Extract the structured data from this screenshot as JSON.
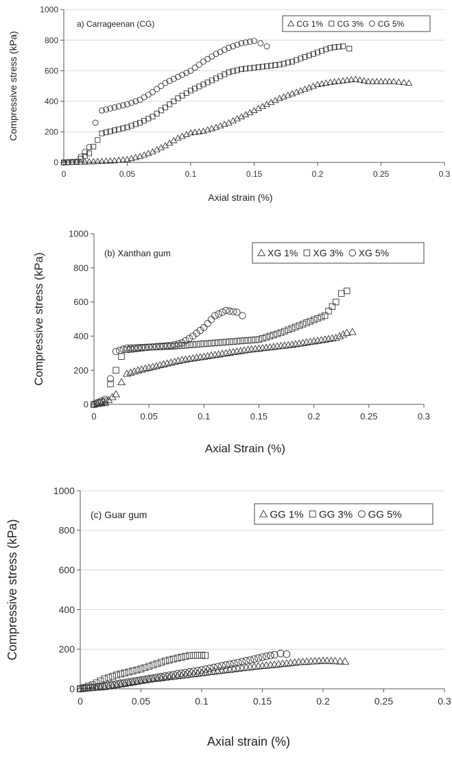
{
  "charts": [
    {
      "type": "scatter",
      "panel_label": "a) Carrageenan (CG)",
      "xlabel": "Axial strain (%)",
      "ylabel": "Compressive stress (kPa)",
      "xlim": [
        0,
        0.3
      ],
      "ylim": [
        0,
        1000
      ],
      "xticks": [
        0,
        0.05,
        0.1,
        0.15,
        0.2,
        0.25,
        0.3
      ],
      "xtick_labels": [
        "0",
        "0.05",
        "0.1",
        "0.15",
        "0.2",
        "0.25",
        "0.3"
      ],
      "yticks": [
        0,
        200,
        400,
        600,
        800,
        1000
      ],
      "ytick_labels": [
        "0",
        "200",
        "400",
        "600",
        "800",
        "1000"
      ],
      "grid": "horizontal",
      "legend": "top-right",
      "series": [
        {
          "name": "CG 1%",
          "marker": "triangle",
          "points": [
            [
              0.0,
              0
            ],
            [
              0.01,
              2
            ],
            [
              0.02,
              5
            ],
            [
              0.03,
              8
            ],
            [
              0.04,
              12
            ],
            [
              0.05,
              20
            ],
            [
              0.06,
              40
            ],
            [
              0.07,
              70
            ],
            [
              0.08,
              110
            ],
            [
              0.09,
              160
            ],
            [
              0.1,
              195
            ],
            [
              0.11,
              205
            ],
            [
              0.12,
              230
            ],
            [
              0.13,
              260
            ],
            [
              0.14,
              300
            ],
            [
              0.15,
              340
            ],
            [
              0.16,
              380
            ],
            [
              0.17,
              420
            ],
            [
              0.18,
              450
            ],
            [
              0.19,
              480
            ],
            [
              0.2,
              510
            ],
            [
              0.21,
              525
            ],
            [
              0.22,
              535
            ],
            [
              0.23,
              545
            ],
            [
              0.24,
              530
            ],
            [
              0.26,
              530
            ],
            [
              0.272,
              520
            ]
          ]
        },
        {
          "name": "CG 3%",
          "marker": "square",
          "points": [
            [
              0.0,
              0
            ],
            [
              0.01,
              5
            ],
            [
              0.02,
              60
            ],
            [
              0.03,
              190
            ],
            [
              0.04,
              210
            ],
            [
              0.05,
              230
            ],
            [
              0.06,
              260
            ],
            [
              0.07,
              300
            ],
            [
              0.08,
              360
            ],
            [
              0.09,
              420
            ],
            [
              0.1,
              470
            ],
            [
              0.11,
              510
            ],
            [
              0.12,
              550
            ],
            [
              0.13,
              590
            ],
            [
              0.14,
              610
            ],
            [
              0.15,
              620
            ],
            [
              0.16,
              630
            ],
            [
              0.17,
              640
            ],
            [
              0.18,
              660
            ],
            [
              0.19,
              690
            ],
            [
              0.2,
              720
            ],
            [
              0.21,
              750
            ],
            [
              0.22,
              760
            ],
            [
              0.225,
              745
            ]
          ]
        },
        {
          "name": "CG 5%",
          "marker": "circle",
          "points": [
            [
              0.0,
              0
            ],
            [
              0.01,
              5
            ],
            [
              0.02,
              100
            ],
            [
              0.025,
              260
            ],
            [
              0.03,
              340
            ],
            [
              0.04,
              360
            ],
            [
              0.05,
              380
            ],
            [
              0.06,
              410
            ],
            [
              0.07,
              460
            ],
            [
              0.08,
              520
            ],
            [
              0.09,
              560
            ],
            [
              0.1,
              600
            ],
            [
              0.11,
              660
            ],
            [
              0.12,
              710
            ],
            [
              0.13,
              750
            ],
            [
              0.14,
              780
            ],
            [
              0.15,
              795
            ],
            [
              0.155,
              780
            ],
            [
              0.16,
              760
            ]
          ]
        }
      ]
    },
    {
      "type": "scatter",
      "panel_label": "(b) Xanthan gum",
      "xlabel": "Axial Strain (%)",
      "ylabel": "Compressive stress (kPa)",
      "xlim": [
        0,
        0.3
      ],
      "ylim": [
        0,
        1000
      ],
      "xticks": [
        0,
        0.05,
        0.1,
        0.15,
        0.2,
        0.25,
        0.3
      ],
      "xtick_labels": [
        "0",
        "0.05",
        "0.1",
        "0.15",
        "0.2",
        "0.25",
        "0.3"
      ],
      "yticks": [
        0,
        200,
        400,
        600,
        800,
        1000
      ],
      "ytick_labels": [
        "0",
        "200",
        "400",
        "600",
        "800",
        "1000"
      ],
      "grid": "none",
      "legend": "top-right",
      "series": [
        {
          "name": "XG 1%",
          "marker": "triangle",
          "points": [
            [
              0.0,
              0
            ],
            [
              0.01,
              10
            ],
            [
              0.02,
              60
            ],
            [
              0.025,
              130
            ],
            [
              0.03,
              180
            ],
            [
              0.04,
              200
            ],
            [
              0.05,
              215
            ],
            [
              0.06,
              230
            ],
            [
              0.08,
              260
            ],
            [
              0.1,
              280
            ],
            [
              0.12,
              300
            ],
            [
              0.14,
              320
            ],
            [
              0.16,
              335
            ],
            [
              0.18,
              350
            ],
            [
              0.2,
              370
            ],
            [
              0.22,
              390
            ],
            [
              0.23,
              420
            ],
            [
              0.235,
              425
            ]
          ]
        },
        {
          "name": "XG 3%",
          "marker": "square",
          "points": [
            [
              0.0,
              0
            ],
            [
              0.01,
              20
            ],
            [
              0.015,
              120
            ],
            [
              0.02,
              200
            ],
            [
              0.025,
              280
            ],
            [
              0.03,
              320
            ],
            [
              0.05,
              335
            ],
            [
              0.07,
              340
            ],
            [
              0.09,
              350
            ],
            [
              0.11,
              360
            ],
            [
              0.13,
              370
            ],
            [
              0.15,
              380
            ],
            [
              0.17,
              420
            ],
            [
              0.19,
              470
            ],
            [
              0.21,
              520
            ],
            [
              0.22,
              600
            ],
            [
              0.225,
              650
            ],
            [
              0.23,
              665
            ]
          ]
        },
        {
          "name": "XG 5%",
          "marker": "circle",
          "points": [
            [
              0.0,
              0
            ],
            [
              0.01,
              30
            ],
            [
              0.015,
              150
            ],
            [
              0.02,
              310
            ],
            [
              0.03,
              330
            ],
            [
              0.05,
              335
            ],
            [
              0.07,
              345
            ],
            [
              0.08,
              360
            ],
            [
              0.09,
              400
            ],
            [
              0.1,
              450
            ],
            [
              0.11,
              520
            ],
            [
              0.12,
              550
            ],
            [
              0.13,
              540
            ],
            [
              0.135,
              520
            ]
          ]
        }
      ]
    },
    {
      "type": "scatter",
      "panel_label": "(c) Guar gum",
      "xlabel": "Axial strain (%)",
      "ylabel": "Compressive stress (kPa)",
      "xlim": [
        0,
        0.3
      ],
      "ylim": [
        0,
        1000
      ],
      "xticks": [
        0,
        0.05,
        0.1,
        0.15,
        0.2,
        0.25,
        0.3
      ],
      "xtick_labels": [
        "0",
        "0.05",
        "0.1",
        "0.15",
        "0.2",
        "0.25",
        "0.3"
      ],
      "yticks": [
        0,
        200,
        400,
        600,
        800,
        1000
      ],
      "ytick_labels": [
        "0",
        "200",
        "400",
        "600",
        "800",
        "1000"
      ],
      "grid": "horizontal",
      "legend": "top-right",
      "series": [
        {
          "name": "GG 1%",
          "marker": "triangle",
          "points": [
            [
              0.0,
              0
            ],
            [
              0.02,
              10
            ],
            [
              0.04,
              30
            ],
            [
              0.06,
              50
            ],
            [
              0.08,
              65
            ],
            [
              0.1,
              80
            ],
            [
              0.12,
              95
            ],
            [
              0.14,
              110
            ],
            [
              0.16,
              122
            ],
            [
              0.18,
              135
            ],
            [
              0.2,
              142
            ],
            [
              0.21,
              140
            ],
            [
              0.218,
              138
            ]
          ]
        },
        {
          "name": "GG 3%",
          "marker": "square",
          "points": [
            [
              0.0,
              0
            ],
            [
              0.01,
              20
            ],
            [
              0.02,
              50
            ],
            [
              0.03,
              70
            ],
            [
              0.04,
              85
            ],
            [
              0.05,
              100
            ],
            [
              0.06,
              120
            ],
            [
              0.07,
              140
            ],
            [
              0.08,
              155
            ],
            [
              0.09,
              168
            ],
            [
              0.1,
              170
            ],
            [
              0.103,
              168
            ]
          ]
        },
        {
          "name": "GG 5%",
          "marker": "circle",
          "points": [
            [
              0.0,
              0
            ],
            [
              0.02,
              15
            ],
            [
              0.04,
              35
            ],
            [
              0.06,
              55
            ],
            [
              0.08,
              75
            ],
            [
              0.1,
              95
            ],
            [
              0.12,
              120
            ],
            [
              0.14,
              145
            ],
            [
              0.15,
              160
            ],
            [
              0.16,
              172
            ],
            [
              0.165,
              178
            ],
            [
              0.17,
              175
            ]
          ]
        }
      ]
    }
  ]
}
